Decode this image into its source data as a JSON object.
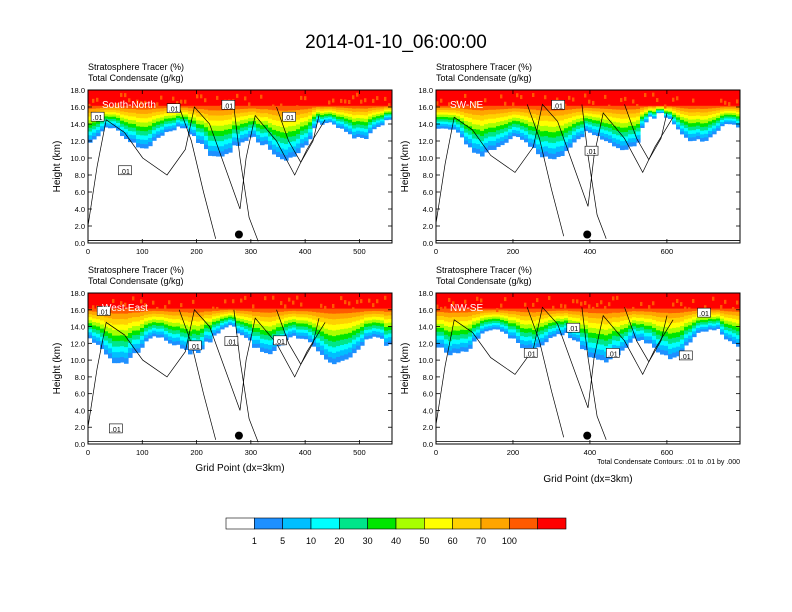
{
  "title": "2014-01-10_06:00:00",
  "chart_data": [
    {
      "type": "heatmap",
      "panel_label": "South-North",
      "subtitle_lines": [
        "Stratosphere Tracer   (%)",
        "Total Condensate   (g/kg)"
      ],
      "ylabel": "Height (km)",
      "xlabel": "",
      "xlim": [
        0,
        560
      ],
      "ylim": [
        0,
        18
      ],
      "x_ticks": [
        "0",
        "100",
        "200",
        "300",
        "400",
        "500"
      ],
      "y_ticks": [
        "0.0",
        "2.0",
        "4.0",
        "6.0",
        "8.0",
        "10.0",
        "12.0",
        "14.0",
        "16.0",
        "18.0"
      ],
      "contour_labels": [
        ".01",
        ".01",
        ".01",
        ".01",
        ".01"
      ],
      "marker": {
        "x": 278,
        "y": 1.0
      }
    },
    {
      "type": "heatmap",
      "panel_label": "SW-NE",
      "subtitle_lines": [
        "Stratosphere Tracer   (%)",
        "Total Condensate   (g/kg)"
      ],
      "ylabel": "Height (km)",
      "xlabel": "",
      "xlim": [
        0,
        790
      ],
      "ylim": [
        0,
        18
      ],
      "x_ticks": [
        "0",
        "200",
        "400",
        "600"
      ],
      "y_ticks": [
        "0.0",
        "2.0",
        "4.0",
        "6.0",
        "8.0",
        "10.0",
        "12.0",
        "14.0",
        "16.0",
        "18.0"
      ],
      "contour_labels": [
        ".01",
        ".01"
      ],
      "marker": {
        "x": 393,
        "y": 1.0
      }
    },
    {
      "type": "heatmap",
      "panel_label": "West-East",
      "subtitle_lines": [
        "Stratosphere Tracer   (%)",
        "Total Condensate   (g/kg)"
      ],
      "ylabel": "Height (km)",
      "xlabel": "Grid Point (dx=3km)",
      "xlim": [
        0,
        560
      ],
      "ylim": [
        0,
        18
      ],
      "x_ticks": [
        "0",
        "100",
        "200",
        "300",
        "400",
        "500"
      ],
      "y_ticks": [
        "0.0",
        "2.0",
        "4.0",
        "6.0",
        "8.0",
        "10.0",
        "12.0",
        "14.0",
        "16.0",
        "18.0"
      ],
      "contour_labels": [
        ".01",
        ".01",
        ".01",
        ".01",
        ".01"
      ],
      "marker": {
        "x": 278,
        "y": 1.0
      }
    },
    {
      "type": "heatmap",
      "panel_label": "NW-SE",
      "subtitle_lines": [
        "Stratosphere Tracer   (%)",
        "Total Condensate   (g/kg)"
      ],
      "ylabel": "Height (km)",
      "xlabel": "Grid Point (dx=3km)",
      "xlim": [
        0,
        790
      ],
      "ylim": [
        0,
        18
      ],
      "x_ticks": [
        "0",
        "200",
        "400",
        "600"
      ],
      "y_ticks": [
        "0.0",
        "2.0",
        "4.0",
        "6.0",
        "8.0",
        "10.0",
        "12.0",
        "14.0",
        "16.0",
        "18.0"
      ],
      "contour_labels": [
        ".01",
        ".01",
        ".01",
        ".01",
        ".01"
      ],
      "marker": {
        "x": 393,
        "y": 1.0
      },
      "footnote": "Total Condensate Contours: .01 to .01 by .000"
    }
  ],
  "colorbar": {
    "labels": [
      "1",
      "5",
      "10",
      "20",
      "30",
      "40",
      "50",
      "60",
      "70",
      "100"
    ],
    "colors": [
      "#ffffff",
      "#1e90ff",
      "#00bfff",
      "#00ffff",
      "#00e58a",
      "#00e600",
      "#a8ff00",
      "#ffff00",
      "#ffd100",
      "#ffa500",
      "#ff5a00",
      "#ff0000"
    ]
  }
}
